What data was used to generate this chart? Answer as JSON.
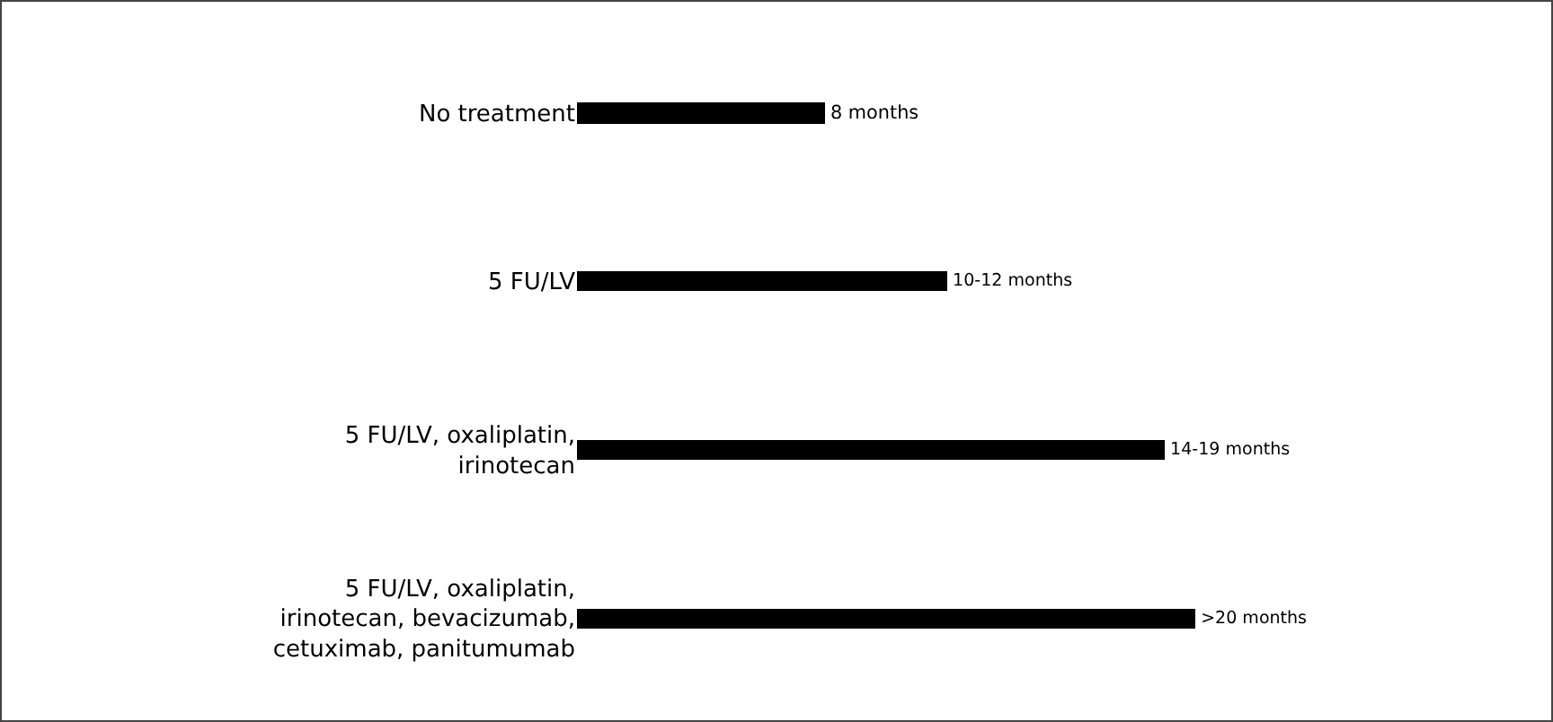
{
  "chart_data": {
    "type": "bar",
    "orientation": "horizontal",
    "categories": [
      "No treatment",
      "5 FU/LV",
      "5 FU/LV, oxaliplatin, irinotecan",
      "5 FU/LV, oxaliplatin, irinotecan, bevacizumab, cetuximab, panitumumab"
    ],
    "values": [
      8,
      12,
      19,
      20
    ],
    "value_labels": [
      "8 months",
      "10-12 months",
      "14-19 months",
      ">20 months"
    ],
    "tick_labels": "y",
    "color": "#000000"
  }
}
